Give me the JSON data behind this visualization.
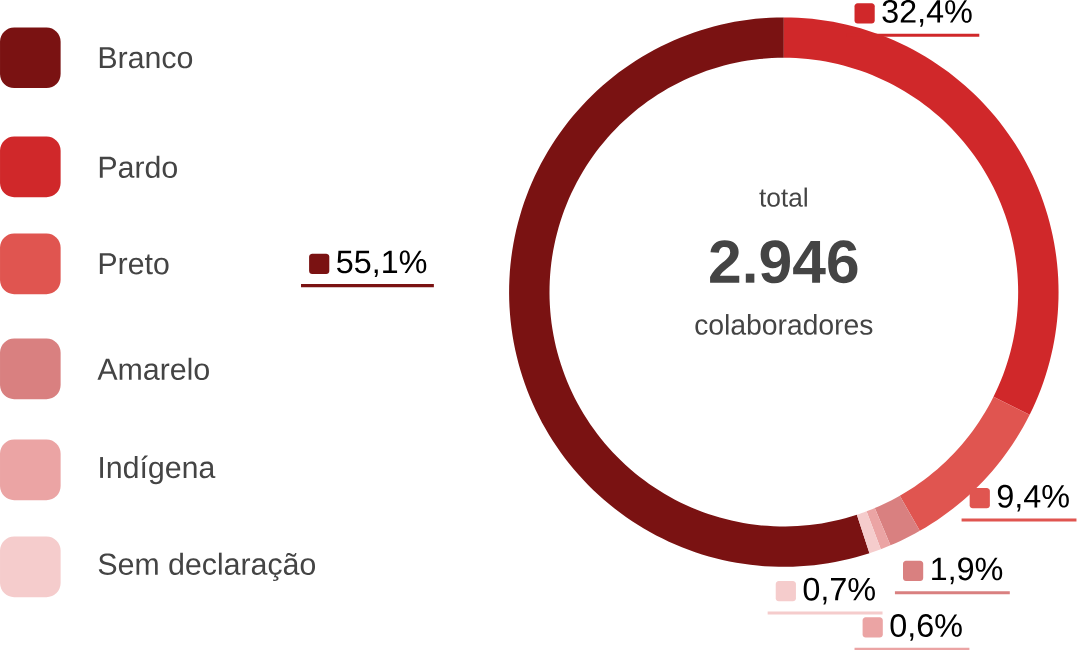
{
  "chart_data": {
    "type": "donut",
    "categories": [
      "Branco",
      "Pardo",
      "Preto",
      "Amarelo",
      "Indígena",
      "Sem declaração"
    ],
    "values": [
      55.1,
      32.4,
      9.4,
      1.9,
      0.6,
      0.7
    ],
    "colors": [
      "#7a1212",
      "#d0282a",
      "#e05550",
      "#d98080",
      "#eba4a4",
      "#f5cccc"
    ],
    "value_labels": [
      "55,1%",
      "32,4%",
      "9,4%",
      "1,9%",
      "0,6%",
      "0,7%"
    ],
    "annotations": [
      "total",
      "2.946",
      "colaboradores"
    ],
    "legend": "left"
  }
}
